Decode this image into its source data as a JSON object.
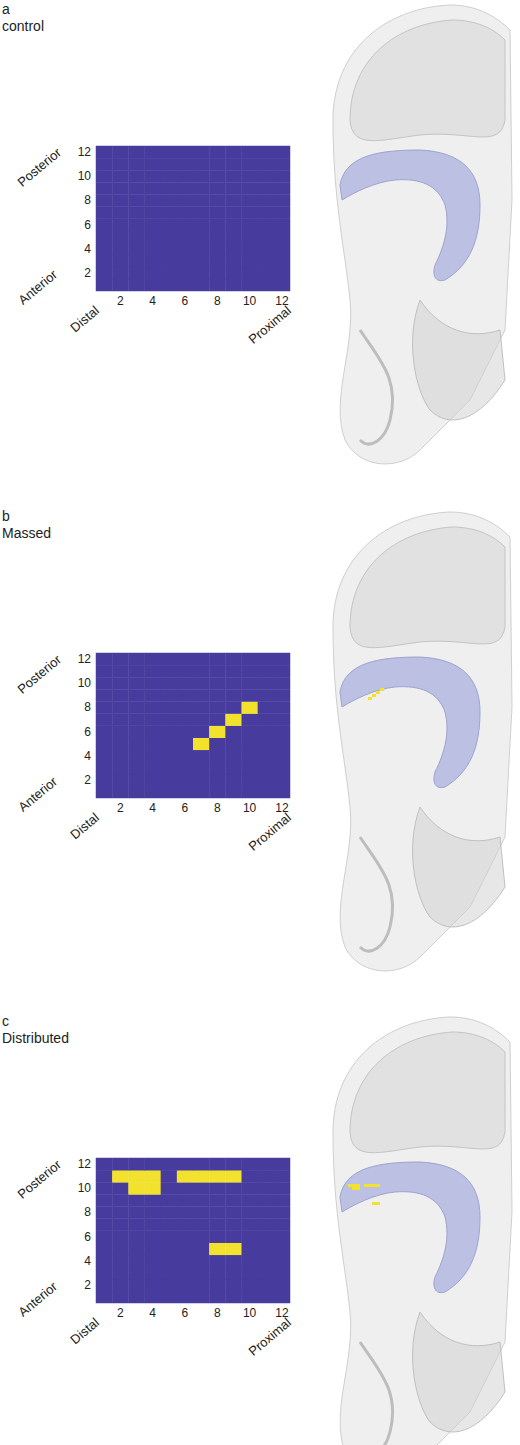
{
  "chart_data": [
    {
      "type": "heatmap",
      "panel": "a",
      "title": "control",
      "x": [
        1,
        2,
        3,
        4,
        5,
        6,
        7,
        8,
        9,
        10,
        11,
        12
      ],
      "y": [
        1,
        2,
        3,
        4,
        5,
        6,
        7,
        8,
        9,
        10,
        11,
        12
      ],
      "xlim": [
        0.5,
        12.5
      ],
      "ylim": [
        0.5,
        12.5
      ],
      "xticks": [
        2,
        4,
        6,
        8,
        10,
        12
      ],
      "yticks": [
        2,
        4,
        6,
        8,
        10,
        12
      ],
      "x_labels": [
        "Distal",
        "Proximal"
      ],
      "y_labels": [
        "Anterior",
        "Posterior"
      ],
      "colors": [
        "#473c9e",
        "#f2e22e"
      ],
      "cells": [
        [
          0,
          0,
          0,
          0,
          0,
          0,
          0,
          0,
          0,
          0,
          0,
          0
        ],
        [
          0,
          0,
          0,
          0,
          0,
          0,
          0,
          0,
          0,
          0,
          0,
          0
        ],
        [
          0,
          0,
          0,
          0,
          0,
          0,
          0,
          0,
          0,
          0,
          0,
          0
        ],
        [
          0,
          0,
          0,
          0,
          0,
          0,
          0,
          0,
          0,
          0,
          0,
          0
        ],
        [
          0,
          0,
          0,
          0,
          0,
          0,
          0,
          0,
          0,
          0,
          0,
          0
        ],
        [
          0,
          0,
          0,
          0,
          0,
          0,
          0,
          0,
          0,
          0,
          0,
          0
        ],
        [
          0,
          0,
          0,
          0,
          0,
          0,
          0,
          0,
          0,
          0,
          0,
          0
        ],
        [
          0,
          0,
          0,
          0,
          0,
          0,
          0,
          0,
          0,
          0,
          0,
          0
        ],
        [
          0,
          0,
          0,
          0,
          0,
          0,
          0,
          0,
          0,
          0,
          0,
          0
        ],
        [
          0,
          0,
          0,
          0,
          0,
          0,
          0,
          0,
          0,
          0,
          0,
          0
        ],
        [
          0,
          0,
          0,
          0,
          0,
          0,
          0,
          0,
          0,
          0,
          0,
          0
        ],
        [
          0,
          0,
          0,
          0,
          0,
          0,
          0,
          0,
          0,
          0,
          0,
          0
        ]
      ]
    },
    {
      "type": "heatmap",
      "panel": "b",
      "title": "Massed",
      "x": [
        1,
        2,
        3,
        4,
        5,
        6,
        7,
        8,
        9,
        10,
        11,
        12
      ],
      "y": [
        1,
        2,
        3,
        4,
        5,
        6,
        7,
        8,
        9,
        10,
        11,
        12
      ],
      "xlim": [
        0.5,
        12.5
      ],
      "ylim": [
        0.5,
        12.5
      ],
      "xticks": [
        2,
        4,
        6,
        8,
        10,
        12
      ],
      "yticks": [
        2,
        4,
        6,
        8,
        10,
        12
      ],
      "x_labels": [
        "Distal",
        "Proximal"
      ],
      "y_labels": [
        "Anterior",
        "Posterior"
      ],
      "colors": [
        "#473c9e",
        "#f2e22e"
      ],
      "cells": [
        [
          0,
          0,
          0,
          0,
          0,
          0,
          0,
          0,
          0,
          0,
          0,
          0
        ],
        [
          0,
          0,
          0,
          0,
          0,
          0,
          0,
          0,
          0,
          0,
          0,
          0
        ],
        [
          0,
          0,
          0,
          0,
          0,
          0,
          0,
          0,
          0,
          0,
          0,
          0
        ],
        [
          0,
          0,
          0,
          0,
          0,
          0,
          0,
          0,
          0,
          0,
          0,
          0
        ],
        [
          0,
          0,
          0,
          0,
          0,
          0,
          1,
          0,
          0,
          0,
          0,
          0
        ],
        [
          0,
          0,
          0,
          0,
          0,
          0,
          0,
          1,
          0,
          0,
          0,
          0
        ],
        [
          0,
          0,
          0,
          0,
          0,
          0,
          0,
          0,
          1,
          0,
          0,
          0
        ],
        [
          0,
          0,
          0,
          0,
          0,
          0,
          0,
          0,
          0,
          1,
          0,
          0
        ],
        [
          0,
          0,
          0,
          0,
          0,
          0,
          0,
          0,
          0,
          0,
          0,
          0
        ],
        [
          0,
          0,
          0,
          0,
          0,
          0,
          0,
          0,
          0,
          0,
          0,
          0
        ],
        [
          0,
          0,
          0,
          0,
          0,
          0,
          0,
          0,
          0,
          0,
          0,
          0
        ],
        [
          0,
          0,
          0,
          0,
          0,
          0,
          0,
          0,
          0,
          0,
          0,
          0
        ]
      ]
    },
    {
      "type": "heatmap",
      "panel": "c",
      "title": "Distributed",
      "x": [
        1,
        2,
        3,
        4,
        5,
        6,
        7,
        8,
        9,
        10,
        11,
        12
      ],
      "y": [
        1,
        2,
        3,
        4,
        5,
        6,
        7,
        8,
        9,
        10,
        11,
        12
      ],
      "xlim": [
        0.5,
        12.5
      ],
      "ylim": [
        0.5,
        12.5
      ],
      "xticks": [
        2,
        4,
        6,
        8,
        10,
        12
      ],
      "yticks": [
        2,
        4,
        6,
        8,
        10,
        12
      ],
      "x_labels": [
        "Distal",
        "Proximal"
      ],
      "y_labels": [
        "Anterior",
        "Posterior"
      ],
      "colors": [
        "#473c9e",
        "#f2e22e"
      ],
      "cells": [
        [
          0,
          0,
          0,
          0,
          0,
          0,
          0,
          0,
          0,
          0,
          0,
          0
        ],
        [
          0,
          0,
          0,
          0,
          0,
          0,
          0,
          0,
          0,
          0,
          0,
          0
        ],
        [
          0,
          0,
          0,
          0,
          0,
          0,
          0,
          0,
          0,
          0,
          0,
          0
        ],
        [
          0,
          0,
          0,
          0,
          0,
          0,
          0,
          0,
          0,
          0,
          0,
          0
        ],
        [
          0,
          0,
          0,
          0,
          0,
          0,
          0,
          1,
          1,
          0,
          0,
          0
        ],
        [
          0,
          0,
          0,
          0,
          0,
          0,
          0,
          0,
          0,
          0,
          0,
          0
        ],
        [
          0,
          0,
          0,
          0,
          0,
          0,
          0,
          0,
          0,
          0,
          0,
          0
        ],
        [
          0,
          0,
          0,
          0,
          0,
          0,
          0,
          0,
          0,
          0,
          0,
          0
        ],
        [
          0,
          0,
          0,
          0,
          0,
          0,
          0,
          0,
          0,
          0,
          0,
          0
        ],
        [
          0,
          0,
          1,
          1,
          0,
          0,
          0,
          0,
          0,
          0,
          0,
          0
        ],
        [
          0,
          1,
          1,
          1,
          0,
          1,
          1,
          1,
          1,
          0,
          0,
          0
        ],
        [
          0,
          0,
          0,
          0,
          0,
          0,
          0,
          0,
          0,
          0,
          0,
          0
        ]
      ]
    }
  ]
}
